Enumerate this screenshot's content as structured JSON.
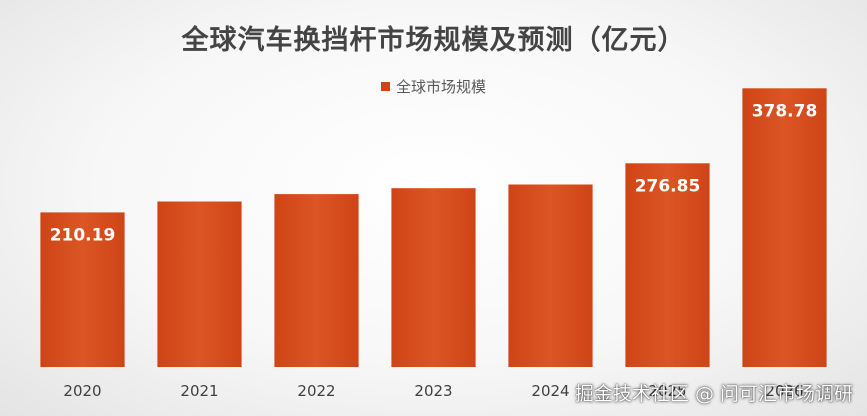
{
  "chart_data": {
    "type": "bar",
    "title": "全球汽车换挡杆市场规模及预测（亿元）",
    "categories": [
      "2020",
      "2021",
      "2022",
      "2023",
      "2024",
      "2025",
      "2026"
    ],
    "series": [
      {
        "name": "全球市场规模",
        "values": [
          210.19,
          225,
          235,
          243,
          248,
          276.85,
          378.78
        ],
        "data_labels": [
          "210.19",
          "",
          "",
          "",
          "",
          "276.85",
          "378.78"
        ]
      }
    ],
    "xlabel": "",
    "ylabel": "",
    "ylim": [
      0,
      420
    ],
    "grid": false,
    "legend_position": "top-center",
    "colors": {
      "bar": "#cf4416",
      "bar_light": "#db5624",
      "label_text": "#ffffff",
      "tick_text": "#404040"
    }
  },
  "watermark": "掘金技术社区 @ 问可汇市场调研"
}
